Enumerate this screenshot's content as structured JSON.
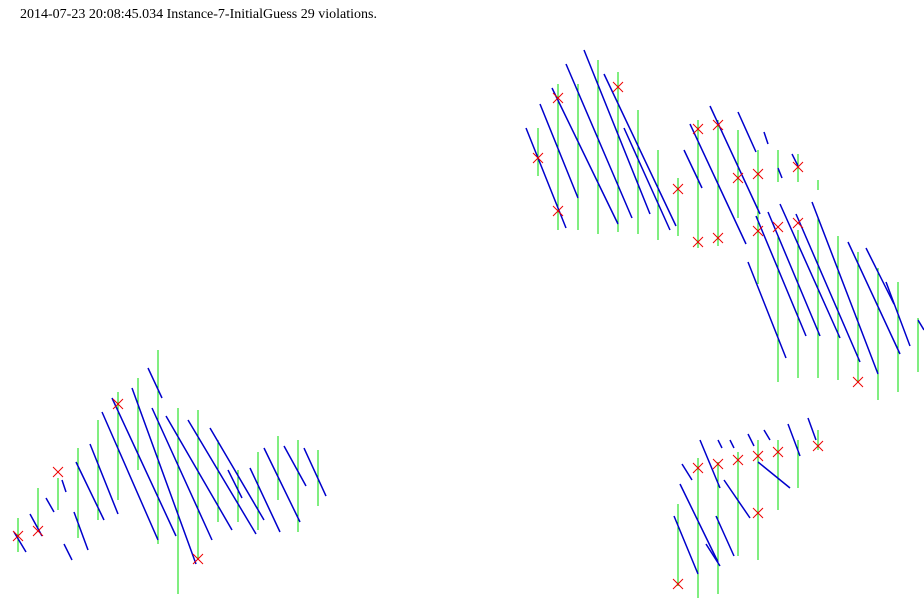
{
  "header": {
    "text": "2014-07-23 20:08:45.034 Instance-7-InitialGuess 29 violations."
  },
  "colors": {
    "green": "#00dd00",
    "blue": "#0000cc",
    "red": "#ee0000",
    "background": "#ffffff"
  },
  "icons": {
    "violation_marker": "x-cross-icon"
  }
}
